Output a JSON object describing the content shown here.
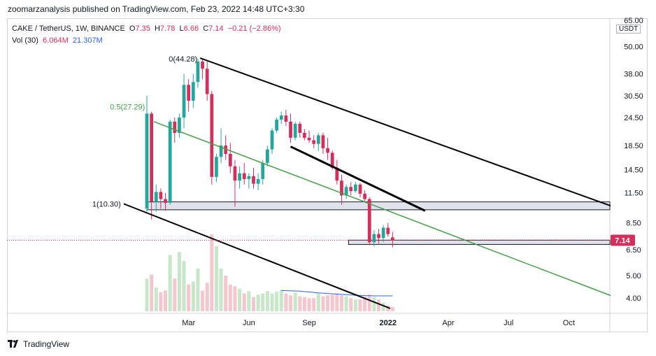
{
  "header": {
    "publisher": "zoomarzanalysis published on TradingView.com, Feb 23, 2022 14:48 UTC+3:30"
  },
  "legend": {
    "symbol": "CAKE / TetherUS, 1W, BINANCE",
    "open_label": "O",
    "open": "7.35",
    "high_label": "H",
    "high": "7.78",
    "low_label": "L",
    "low": "6.66",
    "close_label": "C",
    "close": "7.14",
    "change": "−0.21 (−2.86%)",
    "vol_label": "Vol (30)",
    "vol_value": "6.064M",
    "vol_ma": "21.307M"
  },
  "price_axis": {
    "currency": "USDT",
    "current_price": "7.14"
  },
  "footer": {
    "brand": "TradingView"
  },
  "chart_data": {
    "type": "candlestick",
    "scale": "log",
    "ylim": [
      3.6,
      66
    ],
    "yticks": [
      4.0,
      5.0,
      6.5,
      8.5,
      11.5,
      14.5,
      18.5,
      24.5,
      30.5,
      38.0,
      50.0,
      65.0
    ],
    "ytick_labels": [
      "4.00",
      "5.00",
      "6.50",
      "8.50",
      "11.50",
      "14.50",
      "18.50",
      "24.50",
      "30.50",
      "38.00",
      "50.00",
      "65.00"
    ],
    "xlim": [
      0,
      100
    ],
    "xticks": [
      {
        "label": "Mar",
        "x": 9
      },
      {
        "label": "Jun",
        "x": 22
      },
      {
        "label": "Sep",
        "x": 35
      },
      {
        "label": "2022",
        "x": 52
      },
      {
        "label": "Apr",
        "x": 65
      },
      {
        "label": "Jul",
        "x": 78
      },
      {
        "label": "Oct",
        "x": 91
      }
    ],
    "candles": [
      {
        "x": 0,
        "o": 9.8,
        "h": 30.5,
        "l": 9.5,
        "c": 25.5
      },
      {
        "x": 1,
        "o": 25.5,
        "h": 26.0,
        "l": 8.8,
        "c": 10.5
      },
      {
        "x": 2,
        "o": 10.5,
        "h": 12.5,
        "l": 9.5,
        "c": 11.6
      },
      {
        "x": 3,
        "o": 11.6,
        "h": 12.0,
        "l": 9.8,
        "c": 10.8
      },
      {
        "x": 4,
        "o": 10.8,
        "h": 11.5,
        "l": 9.6,
        "c": 10.4
      },
      {
        "x": 5,
        "o": 10.4,
        "h": 24.0,
        "l": 10.2,
        "c": 23.5
      },
      {
        "x": 6,
        "o": 23.5,
        "h": 24.5,
        "l": 19.0,
        "c": 21.0
      },
      {
        "x": 7,
        "o": 21.0,
        "h": 25.5,
        "l": 20.0,
        "c": 24.5
      },
      {
        "x": 8,
        "o": 24.5,
        "h": 38.0,
        "l": 22.0,
        "c": 34.0
      },
      {
        "x": 9,
        "o": 34.0,
        "h": 36.0,
        "l": 26.0,
        "c": 29.0
      },
      {
        "x": 10,
        "o": 29.0,
        "h": 38.0,
        "l": 27.0,
        "c": 35.0
      },
      {
        "x": 11,
        "o": 35.0,
        "h": 44.28,
        "l": 33.0,
        "c": 43.0
      },
      {
        "x": 12,
        "o": 43.0,
        "h": 44.0,
        "l": 36.0,
        "c": 40.0
      },
      {
        "x": 13,
        "o": 40.0,
        "h": 43.0,
        "l": 29.0,
        "c": 31.0
      },
      {
        "x": 14,
        "o": 31.0,
        "h": 32.0,
        "l": 12.5,
        "c": 13.5
      },
      {
        "x": 15,
        "o": 13.5,
        "h": 17.0,
        "l": 12.8,
        "c": 16.5
      },
      {
        "x": 16,
        "o": 16.5,
        "h": 22.0,
        "l": 15.5,
        "c": 18.5
      },
      {
        "x": 17,
        "o": 18.5,
        "h": 20.5,
        "l": 16.0,
        "c": 17.0
      },
      {
        "x": 18,
        "o": 17.0,
        "h": 19.0,
        "l": 14.0,
        "c": 15.0
      },
      {
        "x": 19,
        "o": 15.0,
        "h": 16.0,
        "l": 10.0,
        "c": 13.0
      },
      {
        "x": 20,
        "o": 13.0,
        "h": 15.0,
        "l": 12.0,
        "c": 14.0
      },
      {
        "x": 21,
        "o": 14.0,
        "h": 15.5,
        "l": 12.5,
        "c": 13.2
      },
      {
        "x": 22,
        "o": 13.2,
        "h": 14.0,
        "l": 12.0,
        "c": 13.6
      },
      {
        "x": 23,
        "o": 13.6,
        "h": 14.8,
        "l": 12.0,
        "c": 12.6
      },
      {
        "x": 24,
        "o": 12.6,
        "h": 14.0,
        "l": 11.8,
        "c": 13.2
      },
      {
        "x": 25,
        "o": 13.2,
        "h": 16.0,
        "l": 12.5,
        "c": 15.5
      },
      {
        "x": 26,
        "o": 15.5,
        "h": 18.5,
        "l": 15.0,
        "c": 17.8
      },
      {
        "x": 27,
        "o": 17.8,
        "h": 22.0,
        "l": 17.0,
        "c": 21.5
      },
      {
        "x": 28,
        "o": 21.5,
        "h": 24.5,
        "l": 21.0,
        "c": 24.0
      },
      {
        "x": 29,
        "o": 24.0,
        "h": 26.0,
        "l": 23.0,
        "c": 25.0
      },
      {
        "x": 30,
        "o": 25.0,
        "h": 26.5,
        "l": 22.5,
        "c": 23.5
      },
      {
        "x": 31,
        "o": 23.5,
        "h": 25.5,
        "l": 19.0,
        "c": 20.0
      },
      {
        "x": 32,
        "o": 20.0,
        "h": 23.5,
        "l": 19.5,
        "c": 23.0
      },
      {
        "x": 33,
        "o": 23.0,
        "h": 23.5,
        "l": 20.0,
        "c": 21.0
      },
      {
        "x": 34,
        "o": 21.0,
        "h": 21.8,
        "l": 19.5,
        "c": 20.0
      },
      {
        "x": 35,
        "o": 20.0,
        "h": 21.5,
        "l": 19.0,
        "c": 19.5
      },
      {
        "x": 36,
        "o": 19.5,
        "h": 20.5,
        "l": 18.0,
        "c": 18.8
      },
      {
        "x": 37,
        "o": 18.8,
        "h": 21.0,
        "l": 17.5,
        "c": 20.5
      },
      {
        "x": 38,
        "o": 20.5,
        "h": 21.0,
        "l": 17.0,
        "c": 18.0
      },
      {
        "x": 39,
        "o": 18.0,
        "h": 20.0,
        "l": 16.0,
        "c": 17.2
      },
      {
        "x": 40,
        "o": 17.2,
        "h": 17.6,
        "l": 14.5,
        "c": 14.8
      },
      {
        "x": 41,
        "o": 14.8,
        "h": 16.0,
        "l": 12.5,
        "c": 13.0
      },
      {
        "x": 42,
        "o": 13.0,
        "h": 13.8,
        "l": 10.2,
        "c": 11.2
      },
      {
        "x": 43,
        "o": 11.2,
        "h": 12.5,
        "l": 10.8,
        "c": 12.2
      },
      {
        "x": 44,
        "o": 12.2,
        "h": 12.8,
        "l": 11.2,
        "c": 11.7
      },
      {
        "x": 45,
        "o": 11.7,
        "h": 12.8,
        "l": 11.5,
        "c": 12.5
      },
      {
        "x": 46,
        "o": 12.5,
        "h": 12.7,
        "l": 11.0,
        "c": 11.4
      },
      {
        "x": 47,
        "o": 11.4,
        "h": 11.8,
        "l": 10.5,
        "c": 10.8
      },
      {
        "x": 48,
        "o": 10.8,
        "h": 11.0,
        "l": 6.8,
        "c": 7.0
      },
      {
        "x": 49,
        "o": 7.0,
        "h": 7.9,
        "l": 6.7,
        "c": 7.6
      },
      {
        "x": 50,
        "o": 7.6,
        "h": 8.0,
        "l": 6.9,
        "c": 7.3
      },
      {
        "x": 51,
        "o": 7.3,
        "h": 8.3,
        "l": 7.0,
        "c": 8.1
      },
      {
        "x": 52,
        "o": 8.1,
        "h": 8.5,
        "l": 7.4,
        "c": 7.6
      },
      {
        "x": 53,
        "o": 7.35,
        "h": 7.78,
        "l": 6.66,
        "c": 7.14
      }
    ],
    "volumes": [
      55,
      62,
      40,
      32,
      35,
      95,
      55,
      100,
      85,
      45,
      50,
      72,
      35,
      48,
      130,
      110,
      72,
      60,
      45,
      42,
      38,
      30,
      34,
      24,
      28,
      30,
      34,
      30,
      33,
      36,
      30,
      27,
      31,
      25,
      24,
      22,
      22,
      30,
      25,
      27,
      28,
      30,
      27,
      25,
      22,
      20,
      20,
      25,
      28,
      24,
      20,
      14,
      10,
      7
    ],
    "volume_ma": [
      {
        "x": 29,
        "v": 35
      },
      {
        "x": 33,
        "v": 34
      },
      {
        "x": 37,
        "v": 31
      },
      {
        "x": 41,
        "v": 29
      },
      {
        "x": 45,
        "v": 27
      },
      {
        "x": 49,
        "v": 26
      },
      {
        "x": 53,
        "v": 26
      }
    ],
    "annotations": [
      {
        "label": "0(44.28)",
        "value": 44.28
      },
      {
        "label": "0.5(27.29)",
        "value": 27.29
      },
      {
        "label": "1(10.30)",
        "value": 10.3
      }
    ],
    "trendlines": [
      {
        "id": "channel-top",
        "color": "#000000",
        "x1": 11.5,
        "y1": 44.5,
        "x2": 100,
        "y2": 10.1
      },
      {
        "id": "channel-bottom",
        "color": "#000000",
        "x1": -5,
        "y1": 10.3,
        "x2": 52.5,
        "y2": 3.6
      },
      {
        "id": "fib-mid",
        "color": "#43a047",
        "x1": 1.5,
        "y1": 23.5,
        "x2": 100,
        "y2": 4.1
      },
      {
        "id": "short-resistance",
        "color": "#000000",
        "x1": 31.0,
        "y1": 18.3,
        "x2": 60.0,
        "y2": 9.6
      }
    ],
    "zones": [
      {
        "id": "support-upper",
        "x1": 0,
        "x2": 100,
        "y_low": 9.7,
        "y_high": 10.5
      },
      {
        "id": "support-lower",
        "x1": 43.5,
        "x2": 100,
        "y_low": 6.85,
        "y_high": 7.15
      }
    ],
    "current_price_value": 7.14,
    "colors": {
      "up": "#26a69a",
      "down": "#d32f5c",
      "vol_up": "#c8e6c9",
      "vol_down": "#f4c7cf",
      "ma": "#2962ff",
      "fib_green": "#43a047"
    }
  }
}
